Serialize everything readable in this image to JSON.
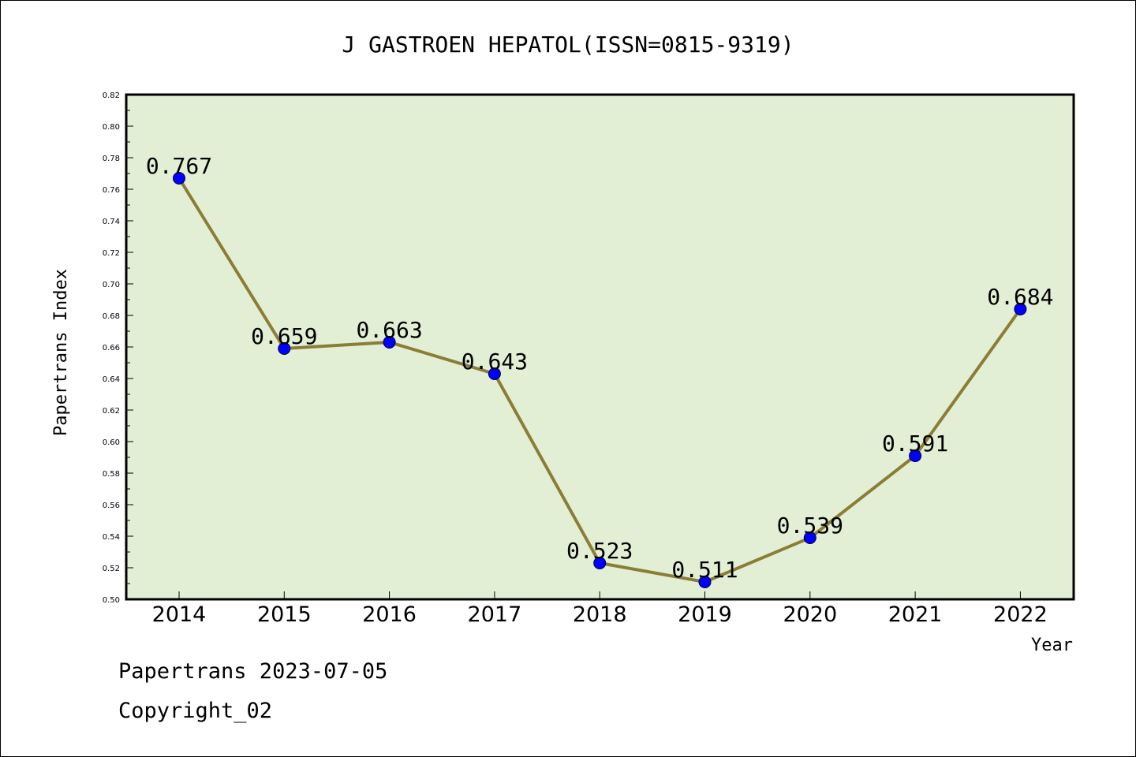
{
  "chart_data": {
    "type": "line",
    "title": "J GASTROEN HEPATOL(ISSN=0815-9319)",
    "xlabel": "Year",
    "ylabel": "Papertrans Index",
    "categories": [
      "2014",
      "2015",
      "2016",
      "2017",
      "2018",
      "2019",
      "2020",
      "2021",
      "2022"
    ],
    "values": [
      0.767,
      0.659,
      0.663,
      0.643,
      0.523,
      0.511,
      0.539,
      0.591,
      0.684
    ],
    "data_labels": [
      "0.767",
      "0.659",
      "0.663",
      "0.643",
      "0.523",
      "0.511",
      "0.539",
      "0.591",
      "0.684"
    ],
    "ylim": [
      0.5,
      0.82
    ],
    "yticks": [
      "0.50",
      "0.52",
      "0.54",
      "0.56",
      "0.58",
      "0.60",
      "0.62",
      "0.64",
      "0.66",
      "0.68",
      "0.70",
      "0.72",
      "0.74",
      "0.76",
      "0.78",
      "0.80",
      "0.82"
    ],
    "grid": false,
    "legend": "none",
    "colors": {
      "plot_background": "#e2efd5",
      "line": "#8b7d35",
      "marker": "#0000ff",
      "marker_edge": "#000033"
    }
  },
  "footer": {
    "date_line": "Papertrans 2023-07-05",
    "copyright": "Copyright_02"
  }
}
